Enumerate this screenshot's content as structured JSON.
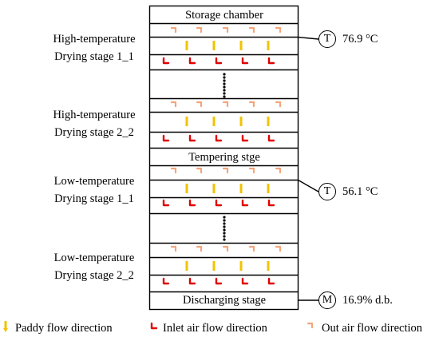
{
  "boxes": {
    "storage": "Storage chamber",
    "tempering": "Tempering stge",
    "discharging": "Discharging stage"
  },
  "stage_labels": [
    {
      "line1": "High-temperature",
      "line2": "Drying stage 1_1"
    },
    {
      "line1": "High-temperature",
      "line2": "Drying stage 2_2"
    },
    {
      "line1": "Low-temperature",
      "line2": "Drying stage 1_1"
    },
    {
      "line1": "Low-temperature",
      "line2": "Drying stage 2_2"
    }
  ],
  "sensors": [
    {
      "symbol": "T",
      "value": "76.9 °C"
    },
    {
      "symbol": "T",
      "value": "56.1 °C"
    },
    {
      "symbol": "M",
      "value": "16.9% d.b."
    }
  ],
  "legend": {
    "paddy": "Paddy flow direction",
    "inlet": "Inlet air flow direction",
    "outlet": "Out air flow direction"
  },
  "colors": {
    "paddy_arrow": "#f2c300",
    "inlet_air": "#e00000",
    "out_air": "#f4a57a"
  }
}
